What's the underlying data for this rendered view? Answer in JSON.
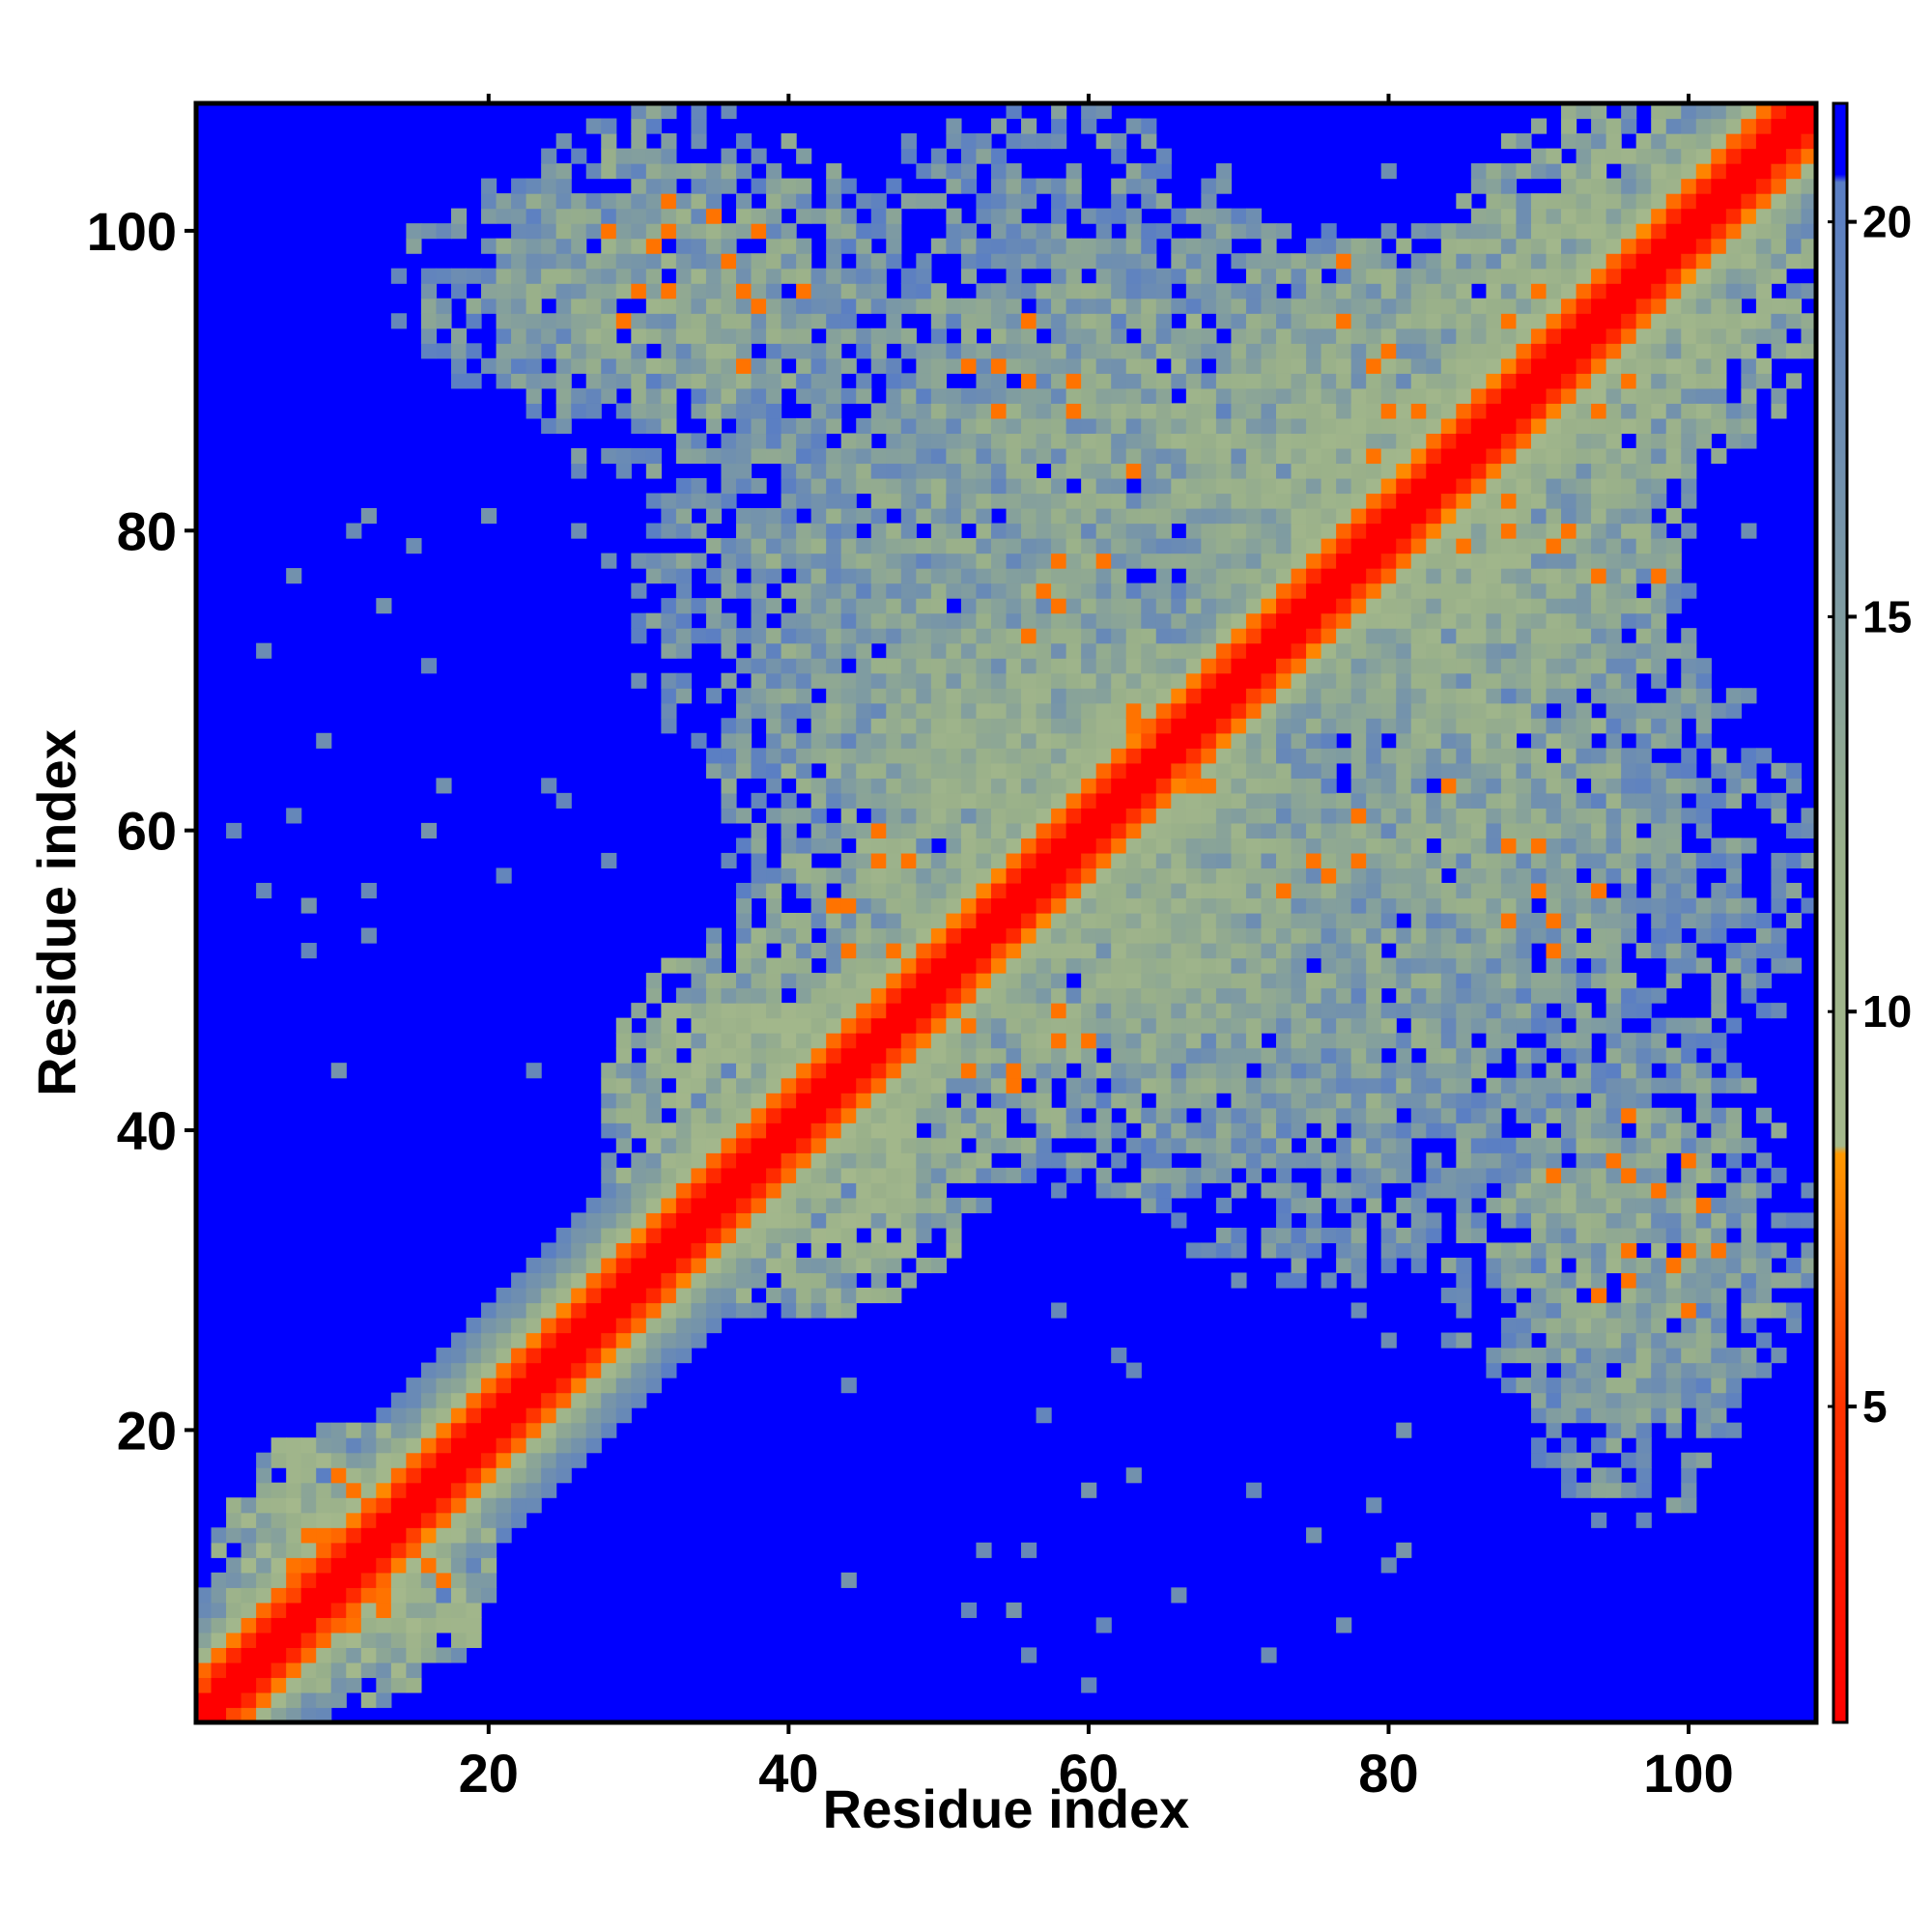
{
  "chart_data": {
    "type": "heatmap",
    "title": "",
    "xlabel": "Residue index",
    "ylabel": "Residue index",
    "xlim": [
      1,
      108
    ],
    "ylim": [
      1,
      108
    ],
    "n_residues": 108,
    "x_ticks": [
      20,
      40,
      60,
      80,
      100
    ],
    "y_ticks": [
      20,
      40,
      60,
      80,
      100
    ],
    "colorbar": {
      "ticks": [
        5,
        10,
        15,
        20
      ],
      "range": [
        1,
        21.5
      ],
      "stops": [
        {
          "value": 1,
          "color": "#ff0000"
        },
        {
          "value": 5,
          "color": "#ff3300"
        },
        {
          "value": 8.2,
          "color": "#ff9900"
        },
        {
          "value": 8.3,
          "color": "#a5b98c"
        },
        {
          "value": 12,
          "color": "#99b08a"
        },
        {
          "value": 17,
          "color": "#6f8fb0"
        },
        {
          "value": 20.5,
          "color": "#5a7ec4"
        },
        {
          "value": 20.6,
          "color": "#0000ff"
        },
        {
          "value": 21.5,
          "color": "#0000ff"
        }
      ]
    },
    "background_value": 21.5,
    "background_color": "#0000ff",
    "description_values": {
      "diagonal": 1,
      "near_diagonal": 4,
      "contact_orange": 7,
      "contact_cutoff": 20.5
    },
    "contact_blocks": [
      {
        "x": [
          2,
          20
        ],
        "y": [
          2,
          20
        ],
        "value": 11
      },
      {
        "x": [
          28,
          54
        ],
        "y": [
          28,
          54
        ],
        "value": 12
      },
      {
        "x": [
          44,
          76
        ],
        "y": [
          44,
          76
        ],
        "value": 13
      },
      {
        "x": [
          66,
          100
        ],
        "y": [
          66,
          100
        ],
        "value": 13
      },
      {
        "x": [
          84,
          108
        ],
        "y": [
          84,
          108
        ],
        "value": 12
      },
      {
        "x": [
          20,
          46
        ],
        "y": [
          84,
          108
        ],
        "value": 14
      },
      {
        "x": [
          46,
          90
        ],
        "y": [
          76,
          100
        ],
        "value": 14
      },
      {
        "x": [
          36,
          60
        ],
        "y": [
          44,
          76
        ],
        "value": 14
      },
      {
        "x": [
          56,
          108
        ],
        "y": [
          40,
          76
        ],
        "value": 15
      },
      {
        "x": [
          88,
          104
        ],
        "y": [
          14,
          46
        ],
        "value": 15
      },
      {
        "x": [
          60,
          90
        ],
        "y": [
          30,
          64
        ],
        "value": 15
      },
      {
        "x": [
          46,
          70
        ],
        "y": [
          56,
          72
        ],
        "value": 14
      }
    ],
    "orange_contacts": [
      [
        30,
        96
      ],
      [
        32,
        100
      ],
      [
        37,
        96
      ],
      [
        37,
        91
      ],
      [
        41,
        96
      ],
      [
        28,
        100
      ],
      [
        29,
        94
      ],
      [
        52,
        91
      ],
      [
        54,
        88
      ],
      [
        56,
        94
      ],
      [
        59,
        90
      ],
      [
        58,
        78
      ],
      [
        57,
        76
      ],
      [
        56,
        73
      ],
      [
        63,
        68
      ],
      [
        62,
        63
      ],
      [
        67,
        63
      ],
      [
        71,
        71
      ],
      [
        74,
        71
      ],
      [
        77,
        94
      ],
      [
        79,
        91
      ],
      [
        82,
        88
      ],
      [
        83,
        86
      ],
      [
        85,
        79
      ],
      [
        88,
        80
      ],
      [
        92,
        80
      ],
      [
        94,
        88
      ],
      [
        96,
        90
      ],
      [
        98,
        77
      ],
      [
        84,
        63
      ],
      [
        88,
        59
      ],
      [
        90,
        56
      ],
      [
        91,
        54
      ],
      [
        75,
        58
      ],
      [
        78,
        61
      ],
      [
        95,
        38
      ],
      [
        98,
        36
      ],
      [
        100,
        38
      ],
      [
        99,
        31
      ],
      [
        96,
        32
      ],
      [
        102,
        32
      ],
      [
        101,
        35
      ],
      [
        43,
        55
      ],
      [
        44,
        52
      ],
      [
        46,
        58
      ],
      [
        52,
        47
      ],
      [
        55,
        44
      ],
      [
        58,
        48
      ],
      [
        60,
        46
      ],
      [
        8,
        13
      ],
      [
        10,
        17
      ],
      [
        13,
        9
      ],
      [
        16,
        11
      ],
      [
        6,
        4
      ],
      [
        11,
        7
      ]
    ],
    "isolated_contacts": [
      [
        5,
        56
      ],
      [
        3,
        60
      ],
      [
        8,
        52
      ],
      [
        10,
        44
      ],
      [
        11,
        80
      ],
      [
        12,
        56
      ],
      [
        15,
        79
      ],
      [
        20,
        81
      ],
      [
        26,
        80
      ],
      [
        31,
        78
      ],
      [
        33,
        82
      ],
      [
        36,
        84
      ],
      [
        40,
        82
      ],
      [
        58,
        28
      ],
      [
        60,
        16
      ],
      [
        63,
        24
      ],
      [
        71,
        16
      ],
      [
        75,
        13
      ],
      [
        78,
        28
      ],
      [
        81,
        12
      ],
      [
        84,
        26
      ],
      [
        93,
        18
      ],
      [
        96,
        16
      ],
      [
        66,
        9
      ],
      [
        53,
        12
      ],
      [
        55,
        8
      ],
      [
        61,
        7
      ],
      [
        72,
        5
      ],
      [
        77,
        7
      ],
      [
        25,
        62
      ],
      [
        21,
        57
      ],
      [
        17,
        63
      ],
      [
        23,
        44
      ],
      [
        14,
        94
      ],
      [
        18,
        91
      ],
      [
        45,
        102
      ],
      [
        48,
        106
      ],
      [
        52,
        100
      ],
      [
        60,
        101
      ],
      [
        62,
        98
      ],
      [
        68,
        102
      ],
      [
        75,
        95
      ],
      [
        80,
        104
      ]
    ]
  }
}
